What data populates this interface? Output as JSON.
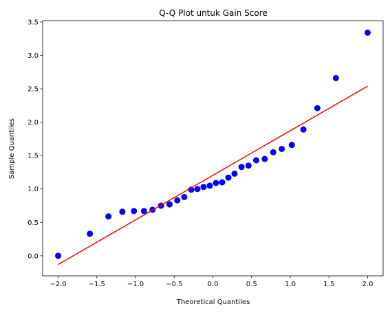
{
  "chart_data": {
    "type": "scatter",
    "title": "Q-Q Plot untuk Gain Score",
    "x_label": "Theoretical Quantiles",
    "y_label": "Sample Quantiles",
    "points": {
      "color": "#0000ff",
      "x": [
        -2.0,
        -1.59,
        -1.35,
        -1.17,
        -1.02,
        -0.89,
        -0.78,
        -0.67,
        -0.56,
        -0.46,
        -0.37,
        -0.28,
        -0.2,
        -0.12,
        -0.04,
        0.04,
        0.12,
        0.2,
        0.28,
        0.37,
        0.46,
        0.56,
        0.67,
        0.78,
        0.89,
        1.02,
        1.17,
        1.35,
        1.59,
        2.0
      ],
      "y": [
        0.0,
        0.33,
        0.59,
        0.66,
        0.67,
        0.67,
        0.69,
        0.75,
        0.77,
        0.83,
        0.88,
        0.99,
        1.0,
        1.03,
        1.05,
        1.09,
        1.1,
        1.17,
        1.23,
        1.33,
        1.35,
        1.43,
        1.45,
        1.55,
        1.6,
        1.66,
        1.89,
        2.21,
        2.66,
        3.34
      ]
    },
    "line": {
      "color": "#ff0000",
      "x": [
        -2.0,
        2.0
      ],
      "y": [
        -0.13,
        2.54
      ]
    },
    "xlim": [
      -2.2,
      2.2
    ],
    "ylim": [
      -0.3,
      3.52
    ],
    "xticks": [
      {
        "value": -2,
        "label": "−2.0"
      },
      {
        "value": -1.5,
        "label": "−1.5"
      },
      {
        "value": -1,
        "label": "−1.0"
      },
      {
        "value": -0.5,
        "label": "−0.5"
      },
      {
        "value": 0,
        "label": "0.0"
      },
      {
        "value": 0.5,
        "label": "0.5"
      },
      {
        "value": 1,
        "label": "1.0"
      },
      {
        "value": 1.5,
        "label": "1.5"
      },
      {
        "value": 2,
        "label": "2.0"
      }
    ],
    "yticks": [
      {
        "value": 0,
        "label": "0.0"
      },
      {
        "value": 0.5,
        "label": "0.5"
      },
      {
        "value": 1,
        "label": "1.0"
      },
      {
        "value": 1.5,
        "label": "1.5"
      },
      {
        "value": 2,
        "label": "2.0"
      },
      {
        "value": 2.5,
        "label": "2.5"
      },
      {
        "value": 3,
        "label": "3.0"
      },
      {
        "value": 3.5,
        "label": "3.5"
      }
    ]
  }
}
